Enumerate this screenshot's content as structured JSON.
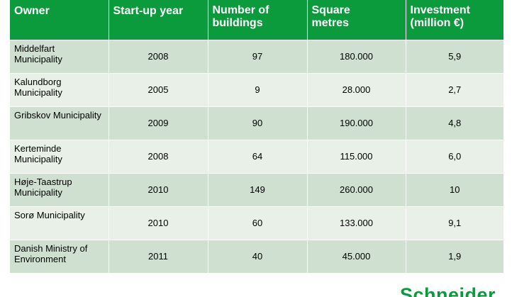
{
  "table": {
    "headers": [
      {
        "line1": "Owner",
        "line2": ""
      },
      {
        "line1": "Start-up year",
        "line2": ""
      },
      {
        "line1": "Number of",
        "line2": "buildings"
      },
      {
        "line1": "Square",
        "line2": "metres"
      },
      {
        "line1": "Investment",
        "line2": "(million €)"
      }
    ],
    "rows": [
      {
        "owner": "Middelfart Municipality",
        "year": "2008",
        "buildings": "97",
        "sqm": "180.000",
        "investment": "5,9"
      },
      {
        "owner": "Kalundborg Municipality",
        "year": "2005",
        "buildings": "9",
        "sqm": "28.000",
        "investment": "2,7"
      },
      {
        "owner": "Gribskov Municipality",
        "year": "2009",
        "buildings": "90",
        "sqm": "190.000",
        "investment": "4,8"
      },
      {
        "owner": "Kerteminde Municipality",
        "year": "2008",
        "buildings": "64",
        "sqm": "115.000",
        "investment": "6,0"
      },
      {
        "owner": "Høje-Taastrup Municipality",
        "year": "2010",
        "buildings": "149",
        "sqm": "260.000",
        "investment": "10"
      },
      {
        "owner": "Sorø Municipality",
        "year": "2010",
        "buildings": "60",
        "sqm": "133.000",
        "investment": "9,1"
      },
      {
        "owner": "Danish Ministry of Environment",
        "year": "2011",
        "buildings": "40",
        "sqm": "45.000",
        "investment": "1,9"
      }
    ]
  },
  "logo": {
    "text": "Schneider"
  },
  "colors": {
    "header_green": "#0b9b3c",
    "row_dark": "#cfe0d1",
    "row_light": "#e8f0e8"
  }
}
